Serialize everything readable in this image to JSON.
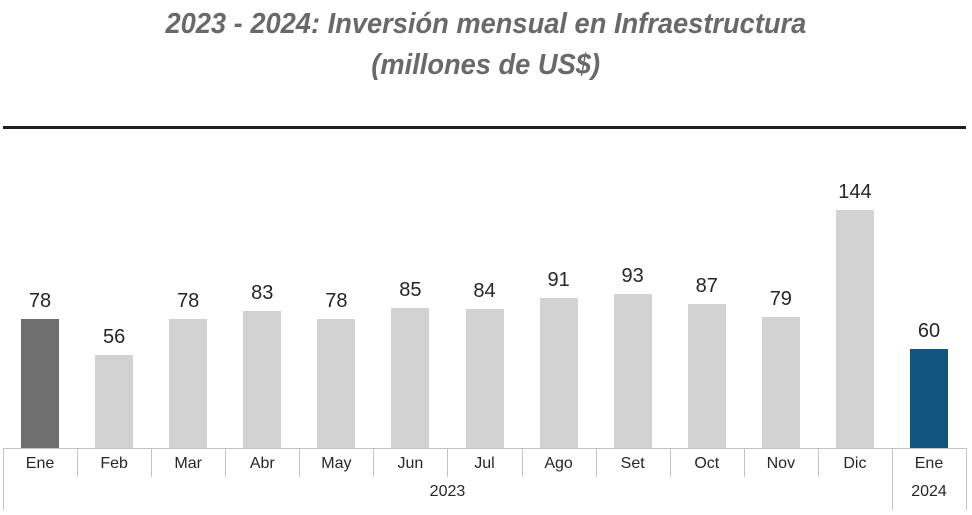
{
  "header": {
    "title_line1": "2023 - 2024: Inversión mensual en Infraestructura",
    "title_line2": "(millones de US$)"
  },
  "chart_data": {
    "type": "bar",
    "title": "2023 - 2024: Inversión mensual en Infraestructura (millones de US$)",
    "categories": [
      "Ene",
      "Feb",
      "Mar",
      "Abr",
      "May",
      "Jun",
      "Jul",
      "Ago",
      "Set",
      "Oct",
      "Nov",
      "Dic",
      "Ene"
    ],
    "values": [
      78,
      56,
      78,
      83,
      78,
      85,
      84,
      91,
      93,
      87,
      79,
      144,
      60
    ],
    "year_groups": [
      {
        "label": "2023",
        "cols": 12
      },
      {
        "label": "2024",
        "cols": 1
      }
    ],
    "point_colors": [
      "#6f6f6f",
      "#d2d2d2",
      "#d2d2d2",
      "#d2d2d2",
      "#d2d2d2",
      "#d2d2d2",
      "#d2d2d2",
      "#d2d2d2",
      "#d2d2d2",
      "#d2d2d2",
      "#d2d2d2",
      "#d2d2d2",
      "#11547d"
    ],
    "colors": {
      "bar_first_highlight": "#6f6f6f",
      "bar_default": "#d2d2d2",
      "bar_last_highlight": "#11547d",
      "axis_line": "#c2c2c2",
      "value_label": "#262626",
      "title": "#696969",
      "divider": "#1f1f1f"
    },
    "xlabel": "",
    "ylabel": "",
    "ylim": [
      0,
      150
    ],
    "grid": false,
    "legend": "none",
    "value_labels_shown": true
  }
}
